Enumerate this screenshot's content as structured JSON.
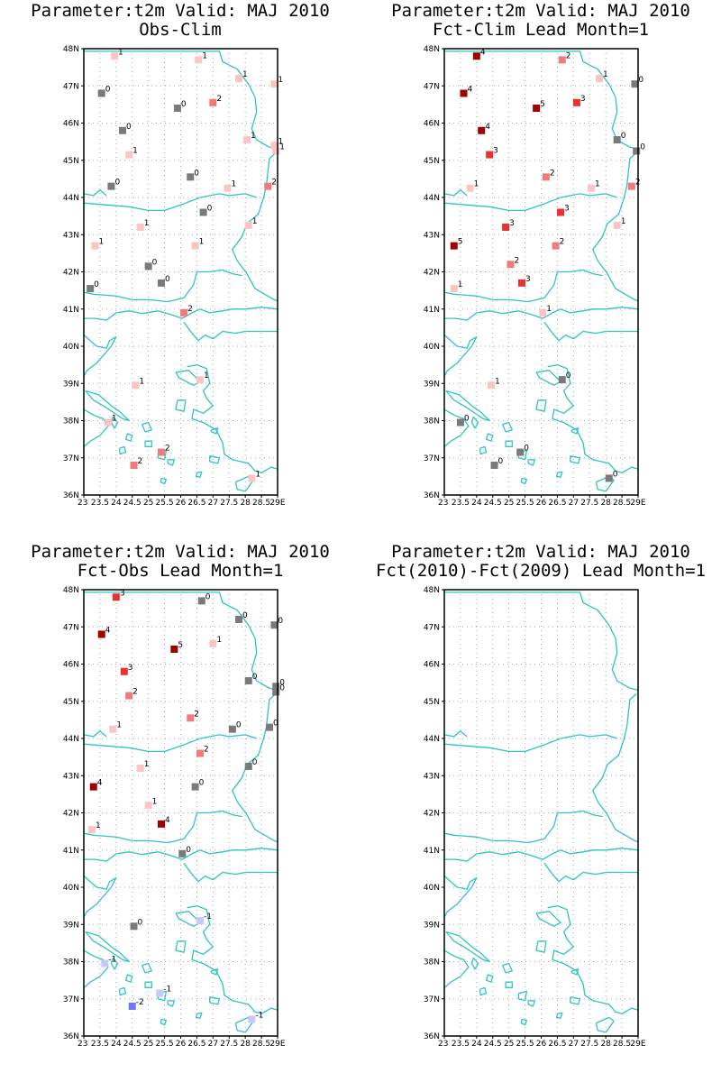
{
  "colors": {
    "coast": "#2ec4c4",
    "frame": "#000000",
    "grid": "#aaaaaa",
    "neg2": "#6b78ff",
    "neg1": "#c8c8ff",
    "zero": "#7a7a7a",
    "pos1": "#fcc4c4",
    "pos2": "#f27a7a",
    "pos3": "#ef3030",
    "pos4": "#a00000"
  },
  "axes": {
    "lat_labels": [
      "48N",
      "47N",
      "46N",
      "45N",
      "44N",
      "43N",
      "42N",
      "41N",
      "40N",
      "39N",
      "38N",
      "37N",
      "36N"
    ],
    "lon_labels": [
      "23",
      "23.5",
      "24",
      "24.5",
      "25",
      "25.5",
      "26",
      "26.5",
      "27",
      "27.5",
      "28",
      "28.5",
      "29E"
    ],
    "lat_range": [
      36,
      48
    ],
    "lon_range": [
      23,
      29
    ],
    "grid": true
  },
  "panels": [
    {
      "title1": "Parameter:t2m Valid: MAJ 2010",
      "title2": "Obs-Clim",
      "stations": [
        {
          "lon": 23.95,
          "lat": 47.8,
          "v": 1
        },
        {
          "lon": 26.55,
          "lat": 47.7,
          "v": 1
        },
        {
          "lon": 27.8,
          "lat": 47.2,
          "v": 1
        },
        {
          "lon": 28.9,
          "lat": 47.05,
          "v": 1
        },
        {
          "lon": 23.55,
          "lat": 46.8,
          "v": 0
        },
        {
          "lon": 25.9,
          "lat": 46.4,
          "v": 0
        },
        {
          "lon": 27.0,
          "lat": 46.55,
          "v": 2
        },
        {
          "lon": 24.2,
          "lat": 45.8,
          "v": 0
        },
        {
          "lon": 28.05,
          "lat": 45.55,
          "v": 1
        },
        {
          "lon": 28.9,
          "lat": 45.4,
          "v": 1
        },
        {
          "lon": 24.4,
          "lat": 45.15,
          "v": 1
        },
        {
          "lon": 28.95,
          "lat": 45.25,
          "v": 1
        },
        {
          "lon": 23.85,
          "lat": 44.3,
          "v": 0
        },
        {
          "lon": 26.3,
          "lat": 44.55,
          "v": 0
        },
        {
          "lon": 27.45,
          "lat": 44.25,
          "v": 1
        },
        {
          "lon": 28.7,
          "lat": 44.3,
          "v": 2
        },
        {
          "lon": 26.7,
          "lat": 43.6,
          "v": 0
        },
        {
          "lon": 24.75,
          "lat": 43.2,
          "v": 1
        },
        {
          "lon": 28.1,
          "lat": 43.25,
          "v": 1
        },
        {
          "lon": 23.35,
          "lat": 42.7,
          "v": 1
        },
        {
          "lon": 26.45,
          "lat": 42.7,
          "v": 1
        },
        {
          "lon": 25.0,
          "lat": 42.15,
          "v": 0
        },
        {
          "lon": 25.4,
          "lat": 41.7,
          "v": 0
        },
        {
          "lon": 23.2,
          "lat": 41.55,
          "v": 0
        },
        {
          "lon": 26.1,
          "lat": 40.9,
          "v": 2
        },
        {
          "lon": 24.6,
          "lat": 38.95,
          "v": 1
        },
        {
          "lon": 26.6,
          "lat": 39.1,
          "v": 1
        },
        {
          "lon": 23.75,
          "lat": 37.95,
          "v": 1
        },
        {
          "lon": 25.4,
          "lat": 37.15,
          "v": 2
        },
        {
          "lon": 24.55,
          "lat": 36.8,
          "v": 2
        },
        {
          "lon": 28.2,
          "lat": 36.45,
          "v": 1
        }
      ]
    },
    {
      "title1": "Parameter:t2m Valid: MAJ 2010",
      "title2": "Fct-Clim Lead Month=1",
      "stations": [
        {
          "lon": 24.0,
          "lat": 47.8,
          "v": 4
        },
        {
          "lon": 26.65,
          "lat": 47.7,
          "v": 2
        },
        {
          "lon": 27.8,
          "lat": 47.2,
          "v": 1
        },
        {
          "lon": 28.9,
          "lat": 47.05,
          "v": 0
        },
        {
          "lon": 23.6,
          "lat": 46.8,
          "v": 4
        },
        {
          "lon": 25.85,
          "lat": 46.4,
          "v": 5
        },
        {
          "lon": 27.1,
          "lat": 46.55,
          "v": 3
        },
        {
          "lon": 24.15,
          "lat": 45.8,
          "v": 4
        },
        {
          "lon": 28.35,
          "lat": 45.55,
          "v": 0
        },
        {
          "lon": 28.95,
          "lat": 45.25,
          "v": 0
        },
        {
          "lon": 24.4,
          "lat": 45.15,
          "v": 3
        },
        {
          "lon": 26.15,
          "lat": 44.55,
          "v": 2
        },
        {
          "lon": 27.55,
          "lat": 44.25,
          "v": 1
        },
        {
          "lon": 28.8,
          "lat": 44.3,
          "v": 2
        },
        {
          "lon": 23.8,
          "lat": 44.25,
          "v": 1
        },
        {
          "lon": 26.6,
          "lat": 43.6,
          "v": 3
        },
        {
          "lon": 24.9,
          "lat": 43.2,
          "v": 3
        },
        {
          "lon": 28.35,
          "lat": 43.25,
          "v": 1
        },
        {
          "lon": 23.3,
          "lat": 42.7,
          "v": 5
        },
        {
          "lon": 26.45,
          "lat": 42.7,
          "v": 2
        },
        {
          "lon": 25.05,
          "lat": 42.2,
          "v": 2
        },
        {
          "lon": 25.4,
          "lat": 41.7,
          "v": 3
        },
        {
          "lon": 23.3,
          "lat": 41.55,
          "v": 1
        },
        {
          "lon": 26.05,
          "lat": 40.9,
          "v": 1
        },
        {
          "lon": 24.45,
          "lat": 38.95,
          "v": 1
        },
        {
          "lon": 26.65,
          "lat": 39.1,
          "v": 0
        },
        {
          "lon": 23.5,
          "lat": 37.95,
          "v": 0
        },
        {
          "lon": 25.35,
          "lat": 37.15,
          "v": 0
        },
        {
          "lon": 24.55,
          "lat": 36.8,
          "v": 0
        },
        {
          "lon": 28.1,
          "lat": 36.45,
          "v": 0
        }
      ]
    },
    {
      "title1": "Parameter:t2m Valid: MAJ 2010",
      "title2": "Fct-Obs Lead Month=1",
      "stations": [
        {
          "lon": 24.0,
          "lat": 47.8,
          "v": 3
        },
        {
          "lon": 26.65,
          "lat": 47.7,
          "v": 0
        },
        {
          "lon": 27.8,
          "lat": 47.2,
          "v": 0
        },
        {
          "lon": 28.9,
          "lat": 47.05,
          "v": 0
        },
        {
          "lon": 23.55,
          "lat": 46.8,
          "v": 4
        },
        {
          "lon": 25.8,
          "lat": 46.4,
          "v": 5
        },
        {
          "lon": 27.0,
          "lat": 46.55,
          "v": 1
        },
        {
          "lon": 24.25,
          "lat": 45.8,
          "v": 3
        },
        {
          "lon": 28.1,
          "lat": 45.55,
          "v": 0
        },
        {
          "lon": 28.95,
          "lat": 45.4,
          "v": 0
        },
        {
          "lon": 24.4,
          "lat": 45.15,
          "v": 2
        },
        {
          "lon": 28.95,
          "lat": 45.25,
          "v": 0
        },
        {
          "lon": 23.9,
          "lat": 44.25,
          "v": 1
        },
        {
          "lon": 26.3,
          "lat": 44.55,
          "v": 2
        },
        {
          "lon": 27.6,
          "lat": 44.25,
          "v": 0
        },
        {
          "lon": 28.75,
          "lat": 44.3,
          "v": 0
        },
        {
          "lon": 26.6,
          "lat": 43.6,
          "v": 2
        },
        {
          "lon": 24.75,
          "lat": 43.2,
          "v": 1
        },
        {
          "lon": 28.1,
          "lat": 43.25,
          "v": 0
        },
        {
          "lon": 23.3,
          "lat": 42.7,
          "v": 4
        },
        {
          "lon": 26.45,
          "lat": 42.7,
          "v": 0
        },
        {
          "lon": 25.0,
          "lat": 42.2,
          "v": 1
        },
        {
          "lon": 25.4,
          "lat": 41.7,
          "v": 4
        },
        {
          "lon": 23.25,
          "lat": 41.55,
          "v": 1
        },
        {
          "lon": 26.05,
          "lat": 40.9,
          "v": 0
        },
        {
          "lon": 24.55,
          "lat": 38.95,
          "v": 0
        },
        {
          "lon": 26.6,
          "lat": 39.1,
          "v": -1
        },
        {
          "lon": 23.65,
          "lat": 37.95,
          "v": -1
        },
        {
          "lon": 25.35,
          "lat": 37.15,
          "v": -1
        },
        {
          "lon": 24.5,
          "lat": 36.8,
          "v": -2
        },
        {
          "lon": 28.2,
          "lat": 36.45,
          "v": -1
        }
      ]
    },
    {
      "title1": "Parameter:t2m Valid: MAJ 2010",
      "title2": "Fct(2010)-Fct(2009) Lead Month=1",
      "stations": []
    }
  ]
}
